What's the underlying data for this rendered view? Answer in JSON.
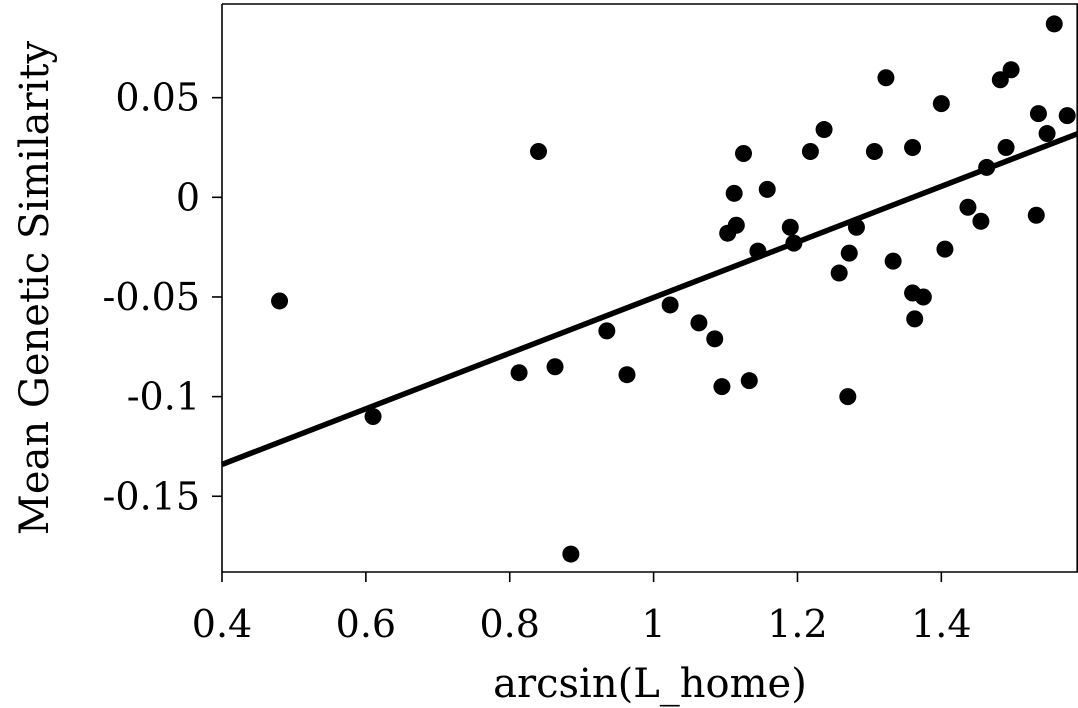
{
  "chart_data": {
    "type": "scatter",
    "xlabel": "arcsin(L_home)",
    "ylabel": "Mean Genetic Similarity",
    "xlim": [
      0.4,
      1.59
    ],
    "ylim": [
      -0.188,
      0.097
    ],
    "x_ticks": [
      0.4,
      0.6,
      0.8,
      1.0,
      1.2,
      1.4
    ],
    "x_tick_labels": [
      "0.4",
      "0.6",
      "0.8",
      "1",
      "1.2",
      "1.4"
    ],
    "y_ticks": [
      0.05,
      0,
      -0.05,
      -0.1,
      -0.15
    ],
    "y_tick_labels": [
      "0.05",
      "0",
      "-0.05",
      "-0.1",
      "-0.15"
    ],
    "grid": false,
    "legend": "none",
    "colors": {
      "points": "#000000",
      "line": "#000000",
      "axes": "#000000"
    },
    "points": [
      {
        "x": 0.48,
        "y": -0.052
      },
      {
        "x": 0.61,
        "y": -0.11
      },
      {
        "x": 0.813,
        "y": -0.088
      },
      {
        "x": 0.84,
        "y": 0.023
      },
      {
        "x": 0.863,
        "y": -0.085
      },
      {
        "x": 0.885,
        "y": -0.179
      },
      {
        "x": 0.935,
        "y": -0.067
      },
      {
        "x": 0.963,
        "y": -0.089
      },
      {
        "x": 1.023,
        "y": -0.054
      },
      {
        "x": 1.063,
        "y": -0.063
      },
      {
        "x": 1.085,
        "y": -0.071
      },
      {
        "x": 1.095,
        "y": -0.095
      },
      {
        "x": 1.103,
        "y": -0.018
      },
      {
        "x": 1.112,
        "y": 0.002
      },
      {
        "x": 1.115,
        "y": -0.014
      },
      {
        "x": 1.125,
        "y": 0.022
      },
      {
        "x": 1.133,
        "y": -0.092
      },
      {
        "x": 1.145,
        "y": -0.027
      },
      {
        "x": 1.158,
        "y": 0.004
      },
      {
        "x": 1.19,
        "y": -0.015
      },
      {
        "x": 1.195,
        "y": -0.023
      },
      {
        "x": 1.218,
        "y": 0.023
      },
      {
        "x": 1.237,
        "y": 0.034
      },
      {
        "x": 1.258,
        "y": -0.038
      },
      {
        "x": 1.27,
        "y": -0.1
      },
      {
        "x": 1.272,
        "y": -0.028
      },
      {
        "x": 1.282,
        "y": -0.015
      },
      {
        "x": 1.307,
        "y": 0.023
      },
      {
        "x": 1.323,
        "y": 0.06
      },
      {
        "x": 1.333,
        "y": -0.032
      },
      {
        "x": 1.36,
        "y": 0.025
      },
      {
        "x": 1.36,
        "y": -0.048
      },
      {
        "x": 1.363,
        "y": -0.061
      },
      {
        "x": 1.375,
        "y": -0.05
      },
      {
        "x": 1.4,
        "y": 0.047
      },
      {
        "x": 1.405,
        "y": -0.026
      },
      {
        "x": 1.437,
        "y": -0.005
      },
      {
        "x": 1.455,
        "y": -0.012
      },
      {
        "x": 1.463,
        "y": 0.015
      },
      {
        "x": 1.482,
        "y": 0.059
      },
      {
        "x": 1.49,
        "y": 0.025
      },
      {
        "x": 1.497,
        "y": 0.064
      },
      {
        "x": 1.532,
        "y": -0.009
      },
      {
        "x": 1.535,
        "y": 0.042
      },
      {
        "x": 1.547,
        "y": 0.032
      },
      {
        "x": 1.557,
        "y": 0.087
      },
      {
        "x": 1.575,
        "y": 0.041
      }
    ],
    "regression_line": {
      "x": [
        0.4,
        1.59
      ],
      "y": [
        -0.134,
        0.032
      ]
    }
  }
}
